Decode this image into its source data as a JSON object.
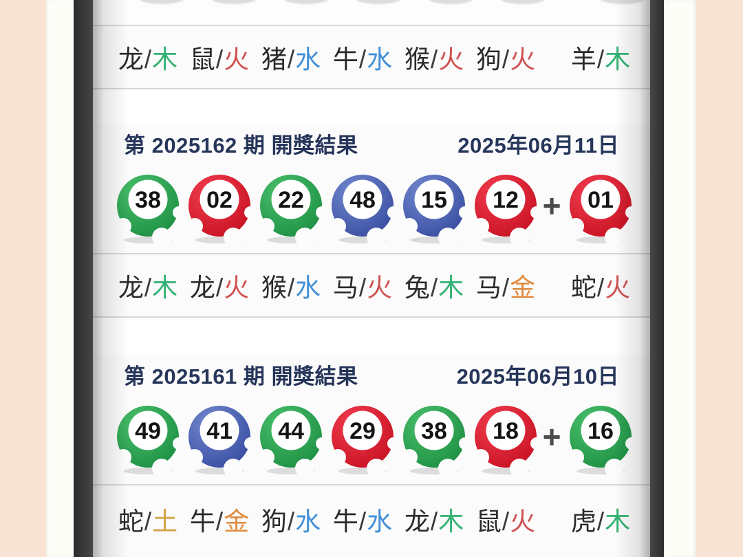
{
  "colors": {
    "frame_pink": "#f9e3d4",
    "frame_white": "#fdfdf8",
    "header_text": "#26355a",
    "ball": {
      "green": {
        "light": "#49c06b",
        "dark": "#1b8c41"
      },
      "red": {
        "light": "#f23d4e",
        "dark": "#c40f20"
      },
      "blue": {
        "light": "#7289cf",
        "dark": "#35499e"
      }
    },
    "element": {
      "木": "#33b273",
      "火": "#d05252",
      "水": "#4390d8",
      "金": "#e08a3e",
      "土": "#d2a244"
    }
  },
  "top_zodiac": [
    {
      "animal": "龙",
      "element": "木"
    },
    {
      "animal": "鼠",
      "element": "火"
    },
    {
      "animal": "猪",
      "element": "水"
    },
    {
      "animal": "牛",
      "element": "水"
    },
    {
      "animal": "猴",
      "element": "火"
    },
    {
      "animal": "狗",
      "element": "火"
    },
    {
      "animal": "羊",
      "element": "木"
    }
  ],
  "draws": [
    {
      "period": "第 2025162 期 開獎結果",
      "date": "2025年06月11日",
      "plus": "+",
      "balls": [
        {
          "num": "38",
          "color": "green"
        },
        {
          "num": "02",
          "color": "red"
        },
        {
          "num": "22",
          "color": "green"
        },
        {
          "num": "48",
          "color": "blue"
        },
        {
          "num": "15",
          "color": "blue"
        },
        {
          "num": "12",
          "color": "red"
        }
      ],
      "bonus": {
        "num": "01",
        "color": "red"
      },
      "zodiac": [
        {
          "animal": "龙",
          "element": "木"
        },
        {
          "animal": "龙",
          "element": "火"
        },
        {
          "animal": "猴",
          "element": "水"
        },
        {
          "animal": "马",
          "element": "火"
        },
        {
          "animal": "兔",
          "element": "木"
        },
        {
          "animal": "马",
          "element": "金"
        },
        {
          "animal": "蛇",
          "element": "火"
        }
      ]
    },
    {
      "period": "第 2025161 期 開獎結果",
      "date": "2025年06月10日",
      "plus": "+",
      "balls": [
        {
          "num": "49",
          "color": "green"
        },
        {
          "num": "41",
          "color": "blue"
        },
        {
          "num": "44",
          "color": "green"
        },
        {
          "num": "29",
          "color": "red"
        },
        {
          "num": "38",
          "color": "green"
        },
        {
          "num": "18",
          "color": "red"
        }
      ],
      "bonus": {
        "num": "16",
        "color": "green"
      },
      "zodiac": [
        {
          "animal": "蛇",
          "element": "土"
        },
        {
          "animal": "牛",
          "element": "金"
        },
        {
          "animal": "狗",
          "element": "水"
        },
        {
          "animal": "牛",
          "element": "水"
        },
        {
          "animal": "龙",
          "element": "木"
        },
        {
          "animal": "鼠",
          "element": "火"
        },
        {
          "animal": "虎",
          "element": "木"
        }
      ]
    }
  ]
}
